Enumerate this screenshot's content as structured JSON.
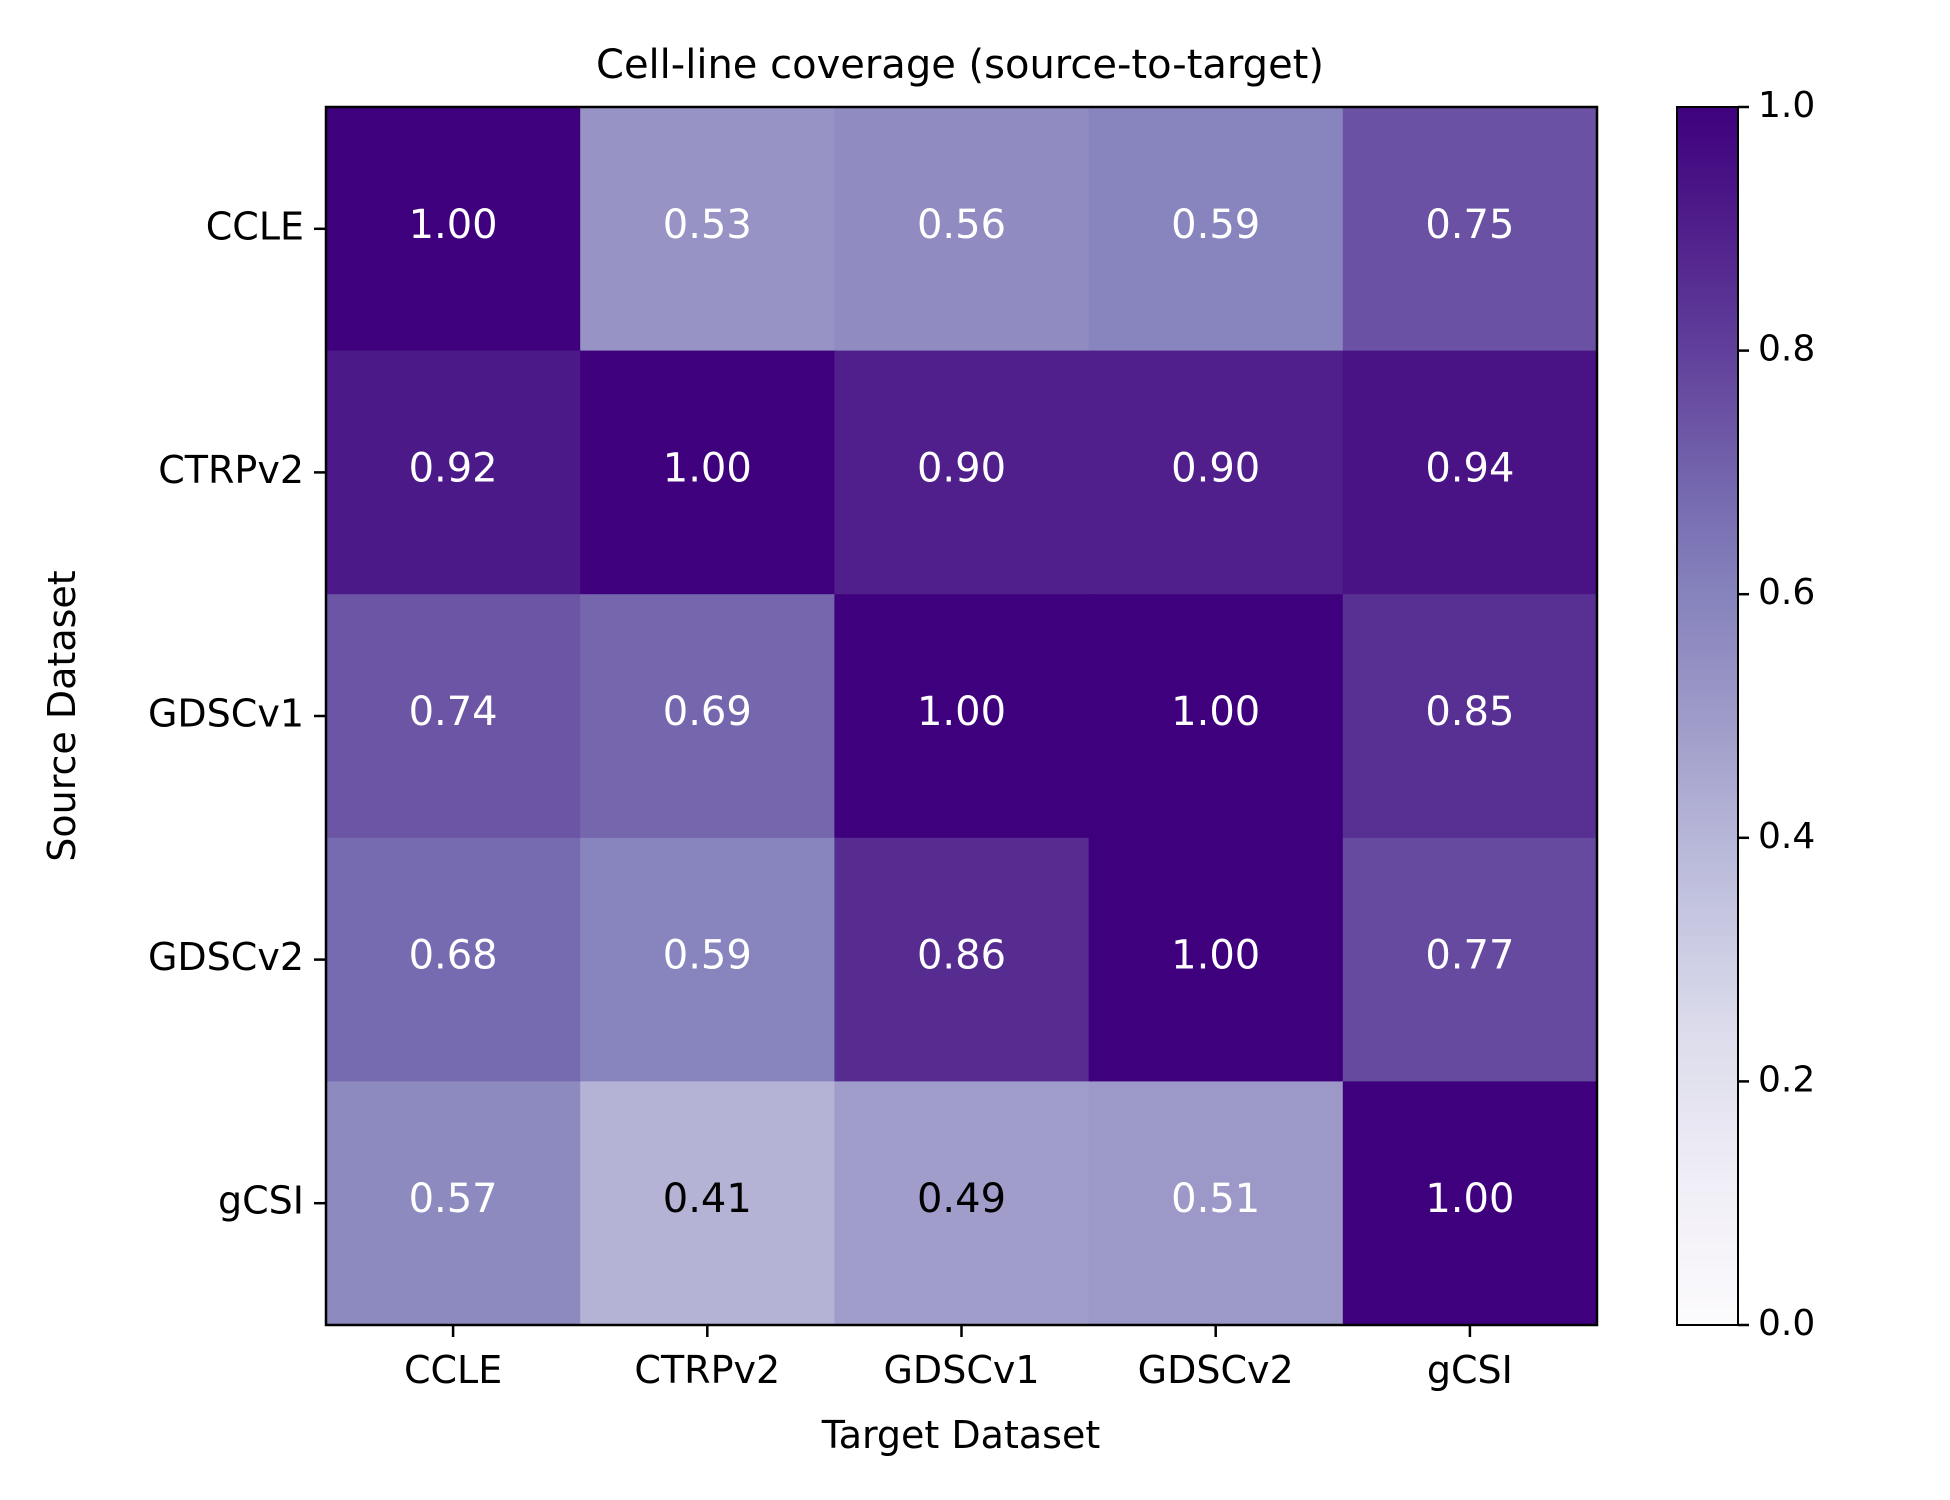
{
  "chart_data": {
    "type": "heatmap",
    "title": "Cell-line coverage (source-to-target)",
    "xlabel": "Target Dataset",
    "ylabel": "Source Dataset",
    "x_categories": [
      "CCLE",
      "CTRPv2",
      "GDSCv1",
      "GDSCv2",
      "gCSI"
    ],
    "y_categories": [
      "CCLE",
      "CTRPv2",
      "GDSCv1",
      "GDSCv2",
      "gCSI"
    ],
    "values": [
      [
        1.0,
        0.53,
        0.56,
        0.59,
        0.75
      ],
      [
        0.92,
        1.0,
        0.9,
        0.9,
        0.94
      ],
      [
        0.74,
        0.69,
        1.0,
        1.0,
        0.85
      ],
      [
        0.68,
        0.59,
        0.86,
        1.0,
        0.77
      ],
      [
        0.57,
        0.41,
        0.49,
        0.51,
        1.0
      ]
    ],
    "value_format": "2 decimals",
    "colormap": "Purples",
    "vmin": 0.0,
    "vmax": 1.0,
    "colorbar": {
      "ticks": [
        0.0,
        0.2,
        0.4,
        0.6,
        0.8,
        1.0
      ],
      "tick_labels": [
        "0.0",
        "0.2",
        "0.4",
        "0.6",
        "0.8",
        "1.0"
      ]
    },
    "colors": {
      "text_on_dark": "#ffffff",
      "text_on_light": "#000000"
    }
  }
}
